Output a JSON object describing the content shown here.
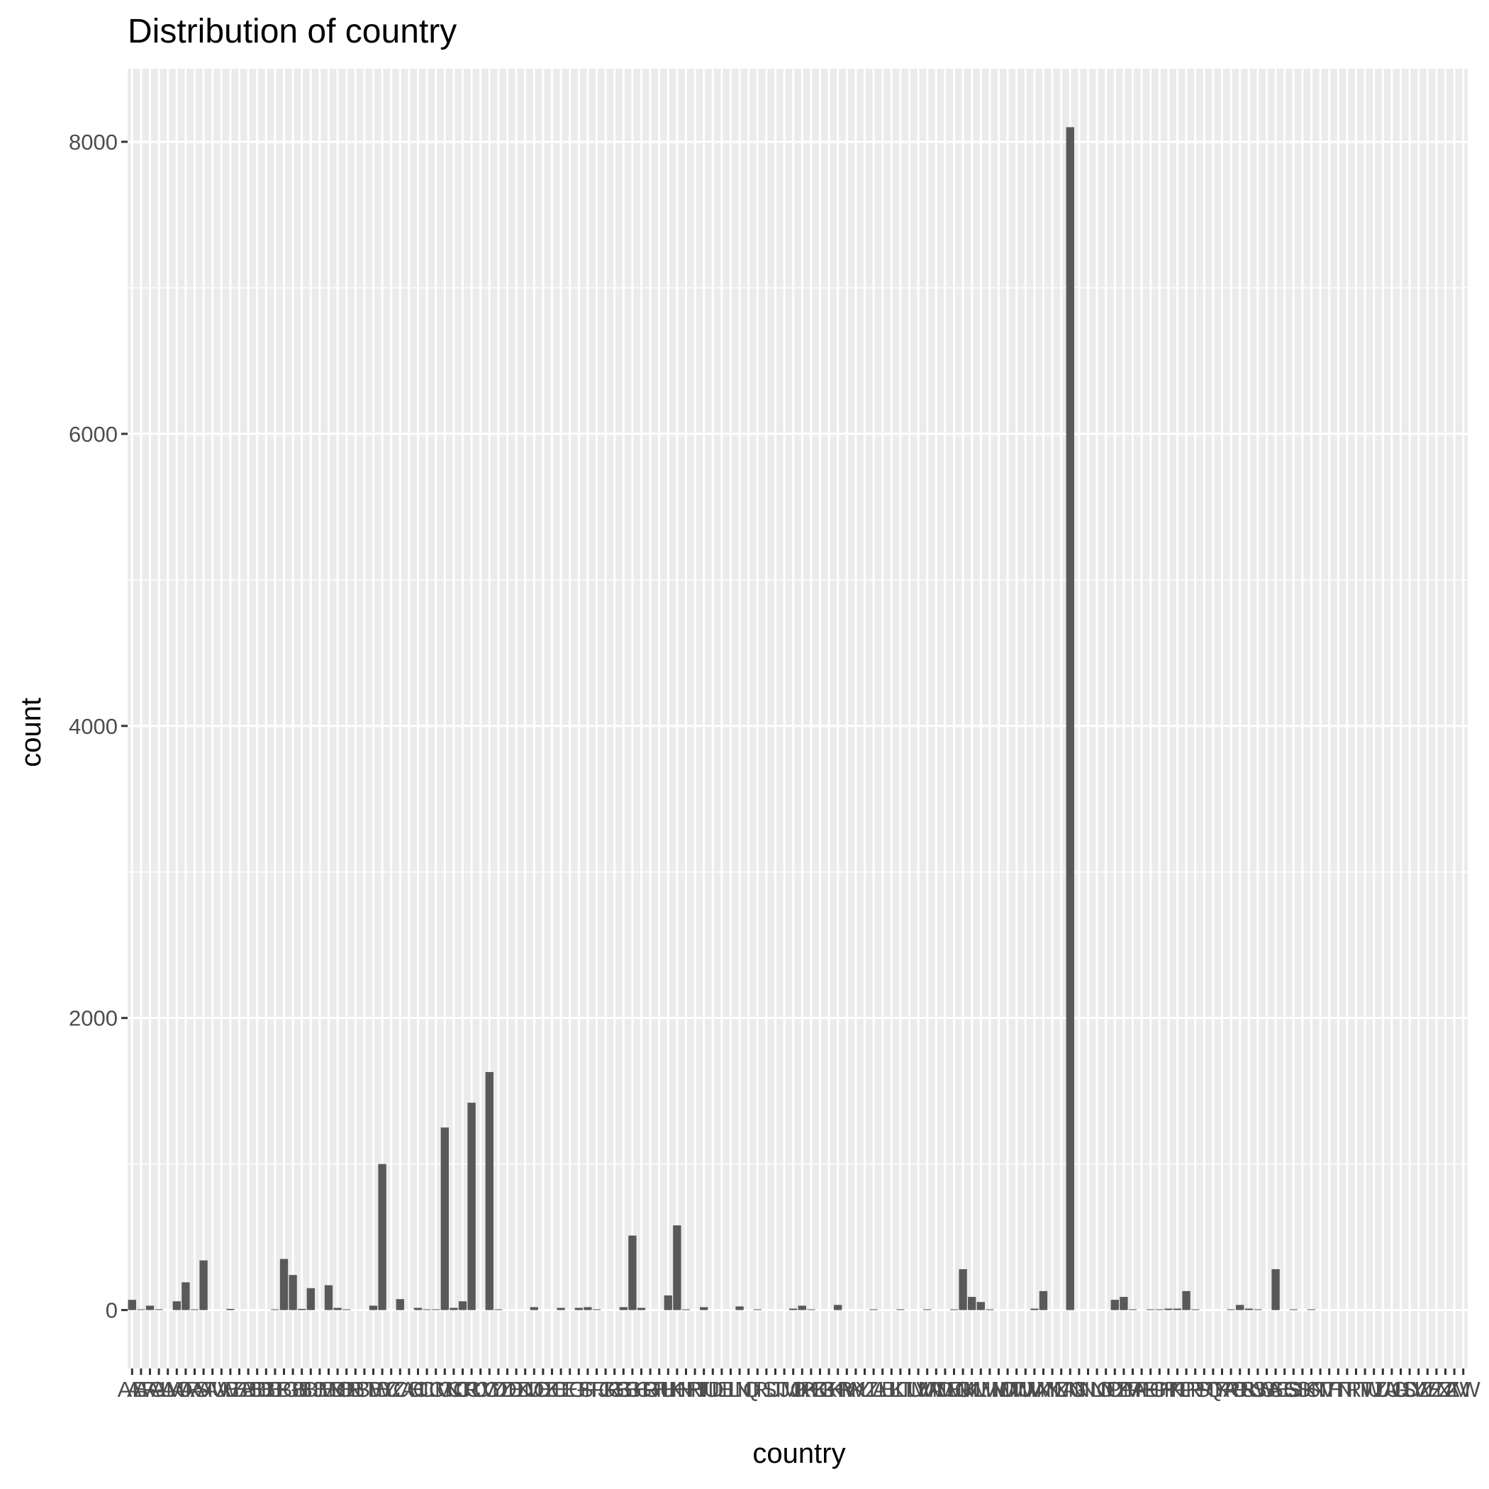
{
  "chart_data": {
    "type": "bar",
    "title": "Distribution of country",
    "xlabel": "country",
    "ylabel": "count",
    "ylim": [
      -400,
      8500
    ],
    "yticks": [
      0,
      2000,
      4000,
      6000,
      8000
    ],
    "grid": true,
    "legend": "none",
    "colors": {
      "bar": "#595959",
      "panel": "#ebebeb",
      "grid": "#ffffff",
      "tick": "#333333"
    },
    "categories": [
      "AE",
      "AF",
      "AG",
      "AL",
      "AM",
      "AO",
      "AR",
      "AS",
      "AT",
      "AU",
      "AW",
      "AZ",
      "BA",
      "BB",
      "BD",
      "BE",
      "BF",
      "BG",
      "BH",
      "BI",
      "BJ",
      "BM",
      "BN",
      "BO",
      "BR",
      "BS",
      "BT",
      "BW",
      "BY",
      "BZ",
      "CA",
      "CH",
      "CI",
      "CL",
      "CM",
      "CN",
      "CO",
      "CR",
      "CU",
      "CV",
      "CY",
      "CZ",
      "DE",
      "DK",
      "DM",
      "DO",
      "DZ",
      "EC",
      "EE",
      "EG",
      "ES",
      "FI",
      "FJ",
      "FR",
      "GB",
      "GE",
      "GH",
      "GR",
      "GT",
      "GU",
      "HK",
      "HN",
      "HR",
      "HT",
      "HU",
      "ID",
      "IE",
      "IL",
      "IN",
      "IQ",
      "IR",
      "IS",
      "IT",
      "JM",
      "JO",
      "JP",
      "KE",
      "KG",
      "KH",
      "KR",
      "KW",
      "KY",
      "KZ",
      "LA",
      "LB",
      "LK",
      "LT",
      "LU",
      "LV",
      "MA",
      "MD",
      "ME",
      "MG",
      "MK",
      "ML",
      "MM",
      "MN",
      "MO",
      "MT",
      "MU",
      "MV",
      "MX",
      "MY",
      "MZ",
      "NA",
      "NG",
      "NI",
      "NL",
      "NO",
      "NP",
      "NZ",
      "OM",
      "PA",
      "PE",
      "PG",
      "PH",
      "PK",
      "PL",
      "PR",
      "PS",
      "PT",
      "PY",
      "QA",
      "RO",
      "RS",
      "RU",
      "RW",
      "SA",
      "SE",
      "SG",
      "SI",
      "SK",
      "SN",
      "SV",
      "TH",
      "TN",
      "TR",
      "TT",
      "TW",
      "TZ",
      "UA",
      "UG",
      "US",
      "UY",
      "UZ",
      "VE",
      "VN",
      "ZA",
      "ZM",
      "ZW"
    ],
    "values": [
      70,
      5,
      30,
      5,
      0,
      60,
      190,
      5,
      340,
      0,
      0,
      8,
      0,
      0,
      0,
      0,
      5,
      350,
      240,
      8,
      150,
      0,
      170,
      15,
      5,
      0,
      0,
      30,
      1000,
      0,
      75,
      0,
      15,
      5,
      5,
      1250,
      15,
      60,
      1420,
      0,
      1630,
      5,
      0,
      0,
      0,
      20,
      0,
      0,
      15,
      0,
      15,
      20,
      5,
      0,
      0,
      20,
      510,
      15,
      0,
      0,
      100,
      580,
      5,
      0,
      20,
      0,
      0,
      0,
      25,
      0,
      5,
      0,
      0,
      0,
      10,
      30,
      5,
      0,
      0,
      35,
      0,
      0,
      0,
      5,
      0,
      0,
      5,
      0,
      0,
      5,
      0,
      0,
      5,
      280,
      90,
      55,
      5,
      0,
      0,
      0,
      0,
      10,
      130,
      0,
      0,
      8100,
      0,
      0,
      0,
      0,
      70,
      90,
      5,
      0,
      5,
      5,
      10,
      10,
      130,
      5,
      0,
      0,
      0,
      5,
      35,
      10,
      5,
      0,
      280,
      0,
      5,
      0,
      5,
      0,
      0,
      0,
      0,
      0,
      0,
      0,
      0,
      0,
      0,
      0,
      0,
      0,
      0,
      0,
      0,
      0
    ]
  }
}
